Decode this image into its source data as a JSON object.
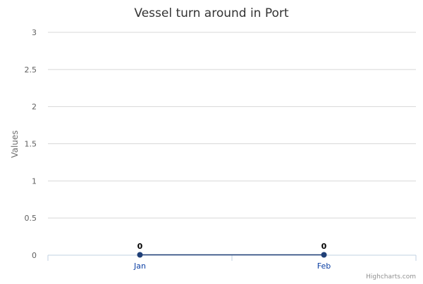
{
  "credits": "Highcharts.com",
  "colors": {
    "series": "#1f3f77",
    "gridline": "#d8d8d8",
    "axis_line": "#c0d0e0",
    "x_tick_label": "#0a3ea3"
  },
  "chart_data": {
    "type": "line",
    "title": "Vessel turn around in Port",
    "xlabel": "",
    "ylabel": "Values",
    "categories": [
      "Jan",
      "Feb"
    ],
    "series": [
      {
        "values": [
          0,
          0
        ]
      }
    ],
    "ylim": [
      0,
      3
    ],
    "yticks": [
      "0",
      "0.5",
      "1",
      "1.5",
      "2",
      "2.5",
      "3"
    ],
    "data_labels": [
      "0",
      "0"
    ],
    "grid": true,
    "legend": "none"
  }
}
